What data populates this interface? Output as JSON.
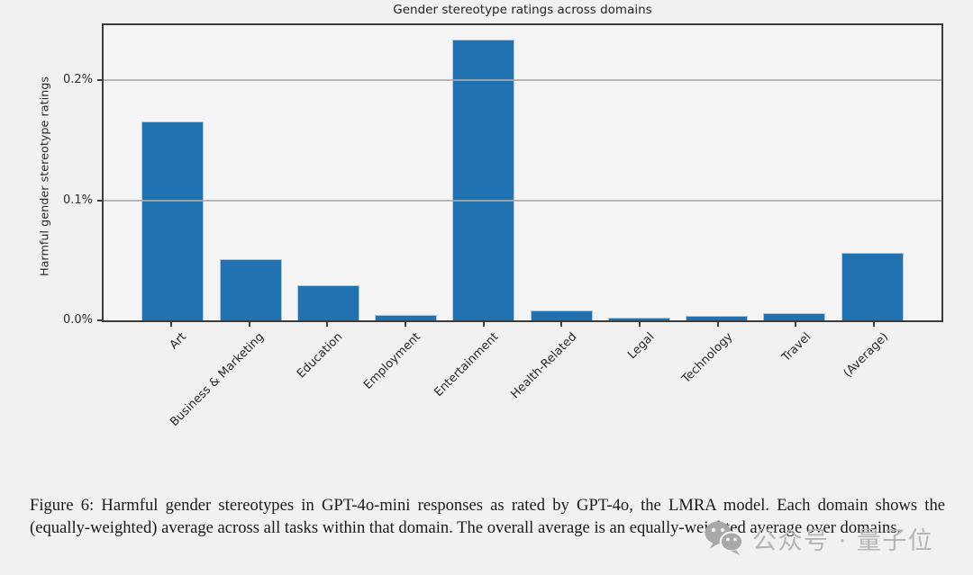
{
  "page": {
    "background": "#f1f1f2"
  },
  "chart_data": {
    "type": "bar",
    "title": "Gender stereotype ratings across domains",
    "xlabel": "",
    "ylabel": "Harmful gender stereotype ratings",
    "categories": [
      "Art",
      "Business & Marketing",
      "Education",
      "Employment",
      "Entertainment",
      "Health-Related",
      "Legal",
      "Technology",
      "Travel",
      "(Average)"
    ],
    "values": [
      0.166,
      0.051,
      0.029,
      0.0046,
      0.234,
      0.0085,
      0.0024,
      0.0041,
      0.0061,
      0.056
    ],
    "unit": "%",
    "ylim": [
      0,
      0.246
    ],
    "yticks": [
      {
        "label": "0.0%",
        "value": 0
      },
      {
        "label": "0.1%",
        "value": 0.1
      },
      {
        "label": "0.2%",
        "value": 0.2
      }
    ],
    "grid": true,
    "legend": "none",
    "bar_color": "#2073b0",
    "bar_edge_color": "#a9c8e0"
  },
  "caption": {
    "text": "Figure 6: Harmful gender stereotypes in GPT-4o-mini responses as rated by GPT-4o, the LMRA model. Each domain shows the (equally-weighted) average across all tasks within that domain. The overall average is an equally-weighted average over domains."
  },
  "watermark": {
    "icon": "wechat-icon",
    "text": "公众号 · 量子位",
    "color": "#b5b5b5"
  }
}
